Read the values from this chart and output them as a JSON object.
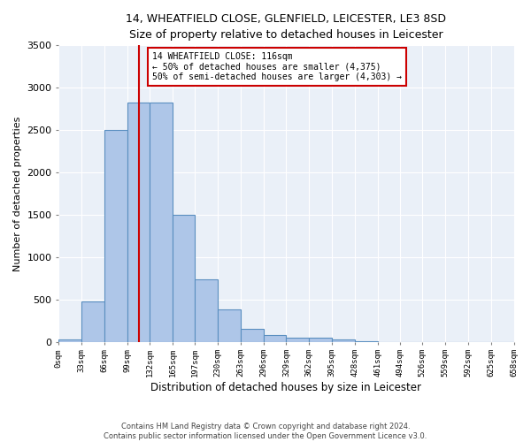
{
  "title_line1": "14, WHEATFIELD CLOSE, GLENFIELD, LEICESTER, LE3 8SD",
  "title_line2": "Size of property relative to detached houses in Leicester",
  "xlabel": "Distribution of detached houses by size in Leicester",
  "ylabel": "Number of detached properties",
  "bin_labels": [
    "0sqm",
    "33sqm",
    "66sqm",
    "99sqm",
    "132sqm",
    "165sqm",
    "197sqm",
    "230sqm",
    "263sqm",
    "296sqm",
    "329sqm",
    "362sqm",
    "395sqm",
    "428sqm",
    "461sqm",
    "494sqm",
    "526sqm",
    "559sqm",
    "592sqm",
    "625sqm",
    "658sqm"
  ],
  "bin_edges": [
    0,
    33,
    66,
    99,
    132,
    165,
    197,
    230,
    263,
    296,
    329,
    362,
    395,
    428,
    461,
    494,
    526,
    559,
    592,
    625,
    658
  ],
  "bar_heights": [
    25,
    480,
    2500,
    2820,
    2820,
    1500,
    740,
    380,
    155,
    75,
    45,
    45,
    25,
    10,
    0,
    0,
    0,
    0,
    0,
    0
  ],
  "bar_color": "#aec6e8",
  "bar_edge_color": "#5a8fc0",
  "vline_x": 116,
  "vline_color": "#cc0000",
  "annotation_text": "14 WHEATFIELD CLOSE: 116sqm\n← 50% of detached houses are smaller (4,375)\n50% of semi-detached houses are larger (4,303) →",
  "annotation_box_color": "#ffffff",
  "annotation_box_edge_color": "#cc0000",
  "ylim": [
    0,
    3500
  ],
  "yticks": [
    0,
    500,
    1000,
    1500,
    2000,
    2500,
    3000,
    3500
  ],
  "bg_color": "#eaf0f8",
  "footer_line1": "Contains HM Land Registry data © Crown copyright and database right 2024.",
  "footer_line2": "Contains public sector information licensed under the Open Government Licence v3.0."
}
